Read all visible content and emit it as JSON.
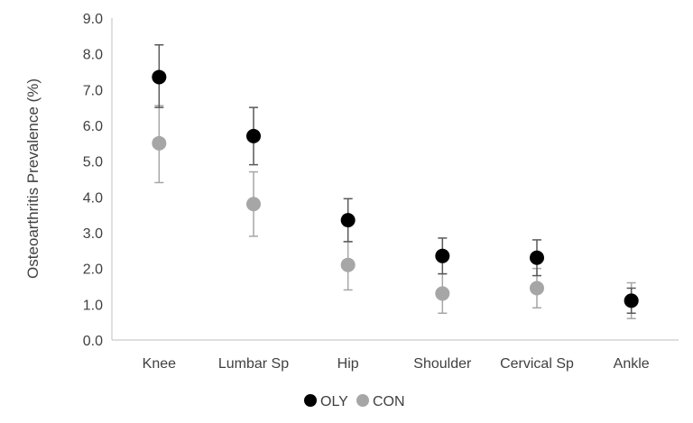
{
  "chart_data": {
    "type": "scatter",
    "title": "",
    "xlabel": "",
    "ylabel": "Osteoarthritis Prevalence (%)",
    "ylim": [
      0,
      9
    ],
    "yticks": [
      "0.0",
      "1.0",
      "2.0",
      "3.0",
      "4.0",
      "5.0",
      "6.0",
      "7.0",
      "8.0",
      "9.0"
    ],
    "categories": [
      "Knee",
      "Lumbar Sp",
      "Hip",
      "Shoulder",
      "Cervical Sp",
      "Ankle"
    ],
    "grid": false,
    "legend_position": "bottom-center",
    "series": [
      {
        "name": "OLY",
        "color": "#000000",
        "values": [
          7.35,
          5.7,
          3.35,
          2.35,
          2.3,
          1.1
        ],
        "error_low": [
          6.5,
          4.9,
          2.75,
          1.85,
          1.8,
          0.75
        ],
        "error_high": [
          8.25,
          6.5,
          3.95,
          2.85,
          2.8,
          1.45
        ]
      },
      {
        "name": "CON",
        "color": "#a6a6a6",
        "values": [
          5.5,
          3.8,
          2.1,
          1.3,
          1.45,
          1.1
        ],
        "error_low": [
          4.4,
          2.9,
          1.4,
          0.75,
          0.9,
          0.6
        ],
        "error_high": [
          6.55,
          4.7,
          2.75,
          1.85,
          2.0,
          1.6
        ]
      }
    ]
  }
}
